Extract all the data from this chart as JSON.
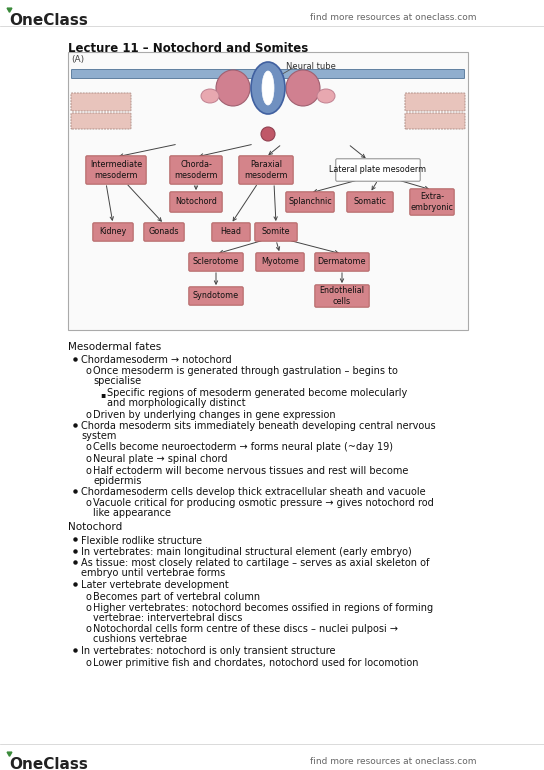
{
  "title": "Lecture 11 – Notochord and Somites",
  "header_logo": "OneClass",
  "header_right": "find more resources at oneclass.com",
  "footer_logo": "OneClass",
  "footer_right": "find more resources at oneclass.com",
  "bg_color": "#ffffff",
  "box_pink_fill": "#d4848a",
  "box_pink_edge": "#b06060",
  "box_outline_fill": "#ffffff",
  "box_outline_edge": "#888888",
  "neural_blue": "#7090c0",
  "neural_blue_edge": "#4060a0",
  "band_blue": "#90aece",
  "band_blue_edge": "#6080a0",
  "lpm_fill": "#e8c4bc",
  "lpm_edge": "#b09088",
  "notochord_red": "#c05868",
  "notochord_edge": "#904050",
  "paraxial_pink": "#d08090",
  "paraxial_edge": "#a06070",
  "text_dark": "#111111",
  "text_gray": "#555555",
  "green_dot": "#3a8a3a"
}
